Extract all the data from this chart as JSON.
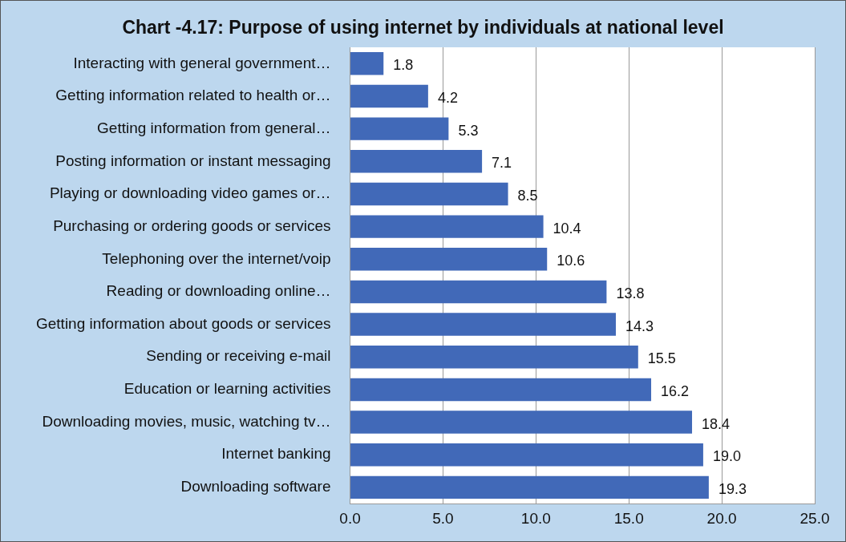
{
  "chart_data": {
    "type": "bar",
    "orientation": "horizontal",
    "title": "Chart -4.17: Purpose of using internet by individuals at national level",
    "categories": [
      "Interacting with general government…",
      "Getting information related to health or…",
      "Getting information from general…",
      "Posting information or instant messaging",
      "Playing or downloading video games or…",
      "Purchasing or ordering goods or services",
      "Telephoning over the internet/voip",
      "Reading or downloading online…",
      "Getting information about goods or services",
      "Sending or receiving e-mail",
      "Education or learning activities",
      "Downloading movies, music, watching tv…",
      "Internet banking",
      "Downloading software"
    ],
    "values": [
      1.8,
      4.2,
      5.3,
      7.1,
      8.5,
      10.4,
      10.6,
      13.8,
      14.3,
      15.5,
      16.2,
      18.4,
      19.0,
      19.3
    ],
    "color": "#4169b8",
    "xlim": [
      0,
      25
    ],
    "xticks": [
      {
        "value": 0,
        "label": "0.0"
      },
      {
        "value": 5,
        "label": "5.0"
      },
      {
        "value": 10,
        "label": "10.0"
      },
      {
        "value": 15,
        "label": "15.0"
      },
      {
        "value": 20,
        "label": "20.0"
      },
      {
        "value": 25,
        "label": "25.0"
      }
    ],
    "value_labels": [
      "1.8",
      "4.2",
      "5.3",
      "7.1",
      "8.5",
      "10.4",
      "10.6",
      "13.8",
      "14.3",
      "15.5",
      "16.2",
      "18.4",
      "19.0",
      "19.3"
    ],
    "grid": "x"
  }
}
